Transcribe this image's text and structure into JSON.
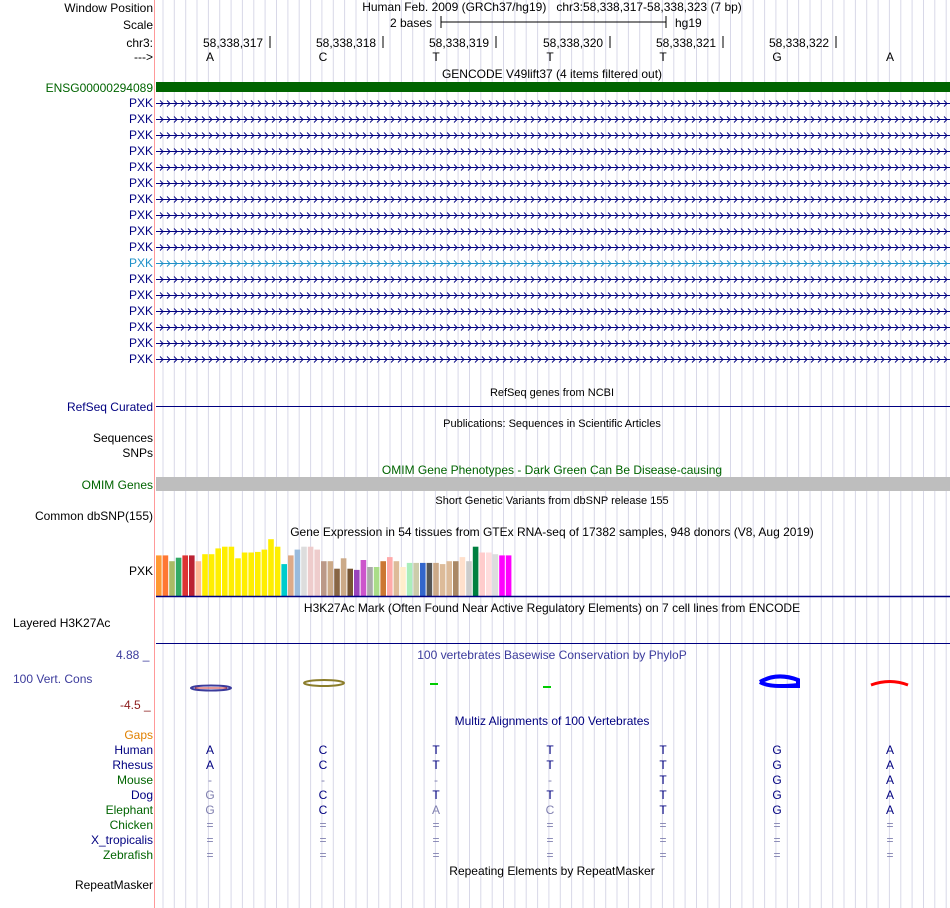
{
  "colors": {
    "navy": "#000080",
    "gencode_green": "#006400",
    "omim_bar": "#bebebe",
    "track_line": "#000080",
    "phylop_blue": "#3b3b9c",
    "phylop_red": "#8b1a1a",
    "gaps_orange": "#e08000",
    "bar_dark_green": "#008040",
    "highlight_blue": "#1e90c8"
  },
  "ruler": {
    "window_position_label": "Window Position",
    "window_position_text": "Human Feb. 2009 (GRCh37/hg19)   chr3:58,338,317-58,338,323 (7 bp)",
    "scale_label": "Scale",
    "scale_size": "2 bases",
    "assembly": "hg19",
    "chrom_label": "chr3:",
    "positions": [
      "58,338,317",
      "58,338,318",
      "58,338,319",
      "58,338,320",
      "58,338,321",
      "58,338,322"
    ],
    "strand_label": "--->",
    "bases": [
      "A",
      "C",
      "T",
      "T",
      "T",
      "G",
      "A"
    ]
  },
  "gencode": {
    "title": "GENCODE V49lift37 (4 items filtered out)",
    "gene_id": "ENSG00000294089",
    "transcripts": [
      "PXK",
      "PXK",
      "PXK",
      "PXK",
      "PXK",
      "PXK",
      "PXK",
      "PXK",
      "PXK",
      "PXK",
      "PXK",
      "PXK",
      "PXK",
      "PXK",
      "PXK",
      "PXK",
      "PXK"
    ],
    "highlighted_index": 10
  },
  "refseq": {
    "title": "RefSeq genes from NCBI",
    "label": "RefSeq Curated"
  },
  "publications": {
    "title": "Publications: Sequences in Scientific Articles",
    "label_sequences": "Sequences",
    "label_snps": "SNPs"
  },
  "omim": {
    "title": "OMIM Gene Phenotypes - Dark Green Can Be Disease-causing",
    "label": "OMIM Genes"
  },
  "dbsnp": {
    "title": "Short Genetic Variants from dbSNP release 155",
    "label": "Common dbSNP(155)"
  },
  "gtex": {
    "title": "Gene Expression in 54 tissues from GTEx RNA-seq of 17382 samples, 948 donors (V8, Aug 2019)",
    "label": "PXK"
  },
  "chart_data": {
    "type": "bar",
    "title": "Gene Expression in 54 tissues from GTEx RNA-seq of 17382 samples, 948 donors (V8, Aug 2019)",
    "xlabel": "",
    "ylabel": "",
    "ylim": [
      0,
      1
    ],
    "values": [
      0.7,
      0.7,
      0.6,
      0.66,
      0.7,
      0.7,
      0.6,
      0.72,
      0.72,
      0.82,
      0.85,
      0.85,
      0.65,
      0.75,
      0.75,
      0.76,
      0.8,
      0.98,
      0.85,
      0.55,
      0.7,
      0.8,
      0.85,
      0.85,
      0.8,
      0.6,
      0.6,
      0.47,
      0.65,
      0.47,
      0.45,
      0.62,
      0.5,
      0.5,
      0.6,
      0.67,
      0.6,
      0.5,
      0.57,
      0.57,
      0.57,
      0.57,
      0.57,
      0.55,
      0.6,
      0.6,
      0.67,
      0.6,
      0.85,
      0.75,
      0.75,
      0.72,
      0.7,
      0.7
    ],
    "colors": [
      "#ff9933",
      "#ff7733",
      "#aabb66",
      "#33aa66",
      "#dd3333",
      "#bb2233",
      "#ffbb99",
      "#ffee00",
      "#ffee00",
      "#ffee00",
      "#ffee00",
      "#ffee00",
      "#ffee00",
      "#ffee00",
      "#ffee00",
      "#ffee00",
      "#ffee00",
      "#ffee00",
      "#ffee00",
      "#00cccc",
      "#ddaa88",
      "#99bbdd",
      "#dddddd",
      "#eecccc",
      "#eecccc",
      "#bb9988",
      "#ccaa88",
      "#886644",
      "#ccaa88",
      "#775533",
      "#9944bb",
      "#cc55cc",
      "#aaaaaa",
      "#aadd88",
      "#cc7733",
      "#ffaaaa",
      "#ddbb99",
      "#ffeecc",
      "#aaeebb",
      "#ccccaa",
      "#3366cc",
      "#555555",
      "#ccaa88",
      "#ddbb99",
      "#ddbb99",
      "#aa8866",
      "#ffe0cc",
      "#cccccc",
      "#008040",
      "#ffcccc",
      "#ffdddd",
      "#dddddd",
      "#ff00ff",
      "#ff00ff"
    ]
  },
  "h3k27ac": {
    "title": "H3K27Ac Mark (Often Found Near Active Regulatory Elements) on 7 cell lines from ENCODE",
    "label": "Layered H3K27Ac"
  },
  "conservation": {
    "title": "100 vertebrates Basewise Conservation by PhyloP",
    "label": "100 Vert. Cons",
    "max": "4.88 _",
    "min": "-4.5 _"
  },
  "multiz": {
    "title": "Multiz Alignments of 100 Vertebrates",
    "gaps_label": "Gaps",
    "species": [
      {
        "name": "Human",
        "bases": [
          "A",
          "C",
          "T",
          "T",
          "T",
          "G",
          "A"
        ]
      },
      {
        "name": "Rhesus",
        "bases": [
          "A",
          "C",
          "T",
          "T",
          "T",
          "G",
          "A"
        ]
      },
      {
        "name": "Mouse",
        "bases": [
          "-",
          "-",
          "-",
          "-",
          "T",
          "G",
          "A"
        ]
      },
      {
        "name": "Dog",
        "bases": [
          "G",
          "C",
          "T",
          "T",
          "T",
          "G",
          "A"
        ]
      },
      {
        "name": "Elephant",
        "bases": [
          "G",
          "C",
          "A",
          "C",
          "T",
          "G",
          "A"
        ]
      },
      {
        "name": "Chicken",
        "bases": [
          "=",
          "=",
          "=",
          "=",
          "=",
          "=",
          "="
        ]
      },
      {
        "name": "X_tropicalis",
        "bases": [
          "=",
          "=",
          "=",
          "=",
          "=",
          "=",
          "="
        ]
      },
      {
        "name": "Zebrafish",
        "bases": [
          "=",
          "=",
          "=",
          "=",
          "=",
          "=",
          "="
        ]
      }
    ]
  },
  "repeatmasker": {
    "title": "Repeating Elements by RepeatMasker",
    "label": "RepeatMasker"
  }
}
